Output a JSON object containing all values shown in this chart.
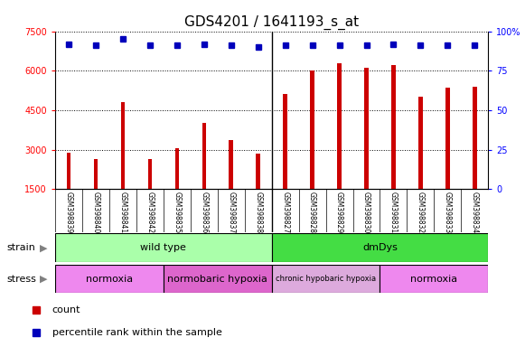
{
  "title": "GDS4201 / 1641193_s_at",
  "samples": [
    "GSM398839",
    "GSM398840",
    "GSM398841",
    "GSM398842",
    "GSM398835",
    "GSM398836",
    "GSM398837",
    "GSM398838",
    "GSM398827",
    "GSM398828",
    "GSM398829",
    "GSM398830",
    "GSM398831",
    "GSM398832",
    "GSM398833",
    "GSM398834"
  ],
  "counts": [
    2900,
    2650,
    4800,
    2650,
    3050,
    4000,
    3350,
    2850,
    5100,
    6000,
    6300,
    6100,
    6200,
    5000,
    5350,
    5400
  ],
  "percentile_ranks": [
    92,
    91,
    95,
    91,
    91,
    92,
    91,
    90,
    91,
    91,
    91,
    91,
    92,
    91,
    91,
    91
  ],
  "bar_color": "#cc0000",
  "dot_color": "#0000bb",
  "ylim_left": [
    1500,
    7500
  ],
  "ylim_right": [
    0,
    100
  ],
  "yticks_left": [
    1500,
    3000,
    4500,
    6000,
    7500
  ],
  "yticks_right": [
    0,
    25,
    50,
    75,
    100
  ],
  "strain_groups": [
    {
      "label": "wild type",
      "start": 0,
      "end": 8,
      "color": "#aaffaa"
    },
    {
      "label": "dmDys",
      "start": 8,
      "end": 16,
      "color": "#44dd44"
    }
  ],
  "stress_groups": [
    {
      "label": "normoxia",
      "start": 0,
      "end": 4,
      "color": "#ee88ee"
    },
    {
      "label": "normobaric hypoxia",
      "start": 4,
      "end": 8,
      "color": "#dd66cc"
    },
    {
      "label": "chronic hypobaric hypoxia",
      "start": 8,
      "end": 12,
      "color": "#ddaadd"
    },
    {
      "label": "normoxia",
      "start": 12,
      "end": 16,
      "color": "#ee88ee"
    }
  ],
  "xticklabel_bg": "#d8d8d8",
  "title_fontsize": 11,
  "bar_width": 0.15
}
